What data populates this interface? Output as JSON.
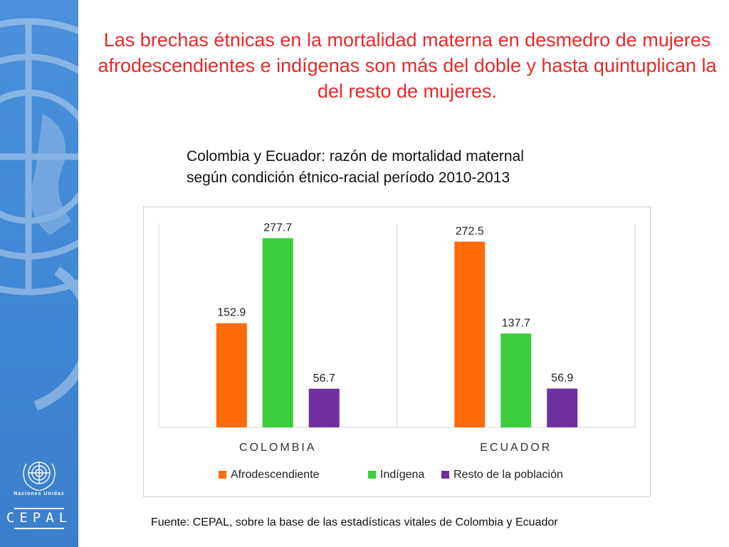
{
  "slide": {
    "headline": "Las brechas étnicas en la mortalidad materna en desmedro de mujeres afrodescendientes e indígenas son más del doble y hasta quintuplican la del resto de mujeres.",
    "subtitle_line1": "Colombia y Ecuador: razón de mortalidad maternal",
    "subtitle_line2": "según condición étnico-racial período 2010-2013",
    "source": "Fuente: CEPAL, sobre la base de las estadísticas vitales de Colombia y Ecuador"
  },
  "branding": {
    "un_label": "Naciones Unidas",
    "cepal_label": "CEPAL",
    "un_logo_icon": "un-emblem-icon"
  },
  "chart_data": {
    "type": "bar",
    "categories": [
      "COLOMBIA",
      "ECUADOR"
    ],
    "series": [
      {
        "name": "Afrodescendiente",
        "values": [
          152.9,
          272.5
        ],
        "color": "#ff6a0a"
      },
      {
        "name": "Indígena",
        "values": [
          277.7,
          137.7
        ],
        "color": "#3ccd3c"
      },
      {
        "name": "Resto de la población",
        "values": [
          56.7,
          56.9
        ],
        "color": "#7030a0"
      }
    ],
    "ylim": [
      0,
      300
    ],
    "grid": false,
    "legend": "bottom",
    "data_labels": true
  }
}
